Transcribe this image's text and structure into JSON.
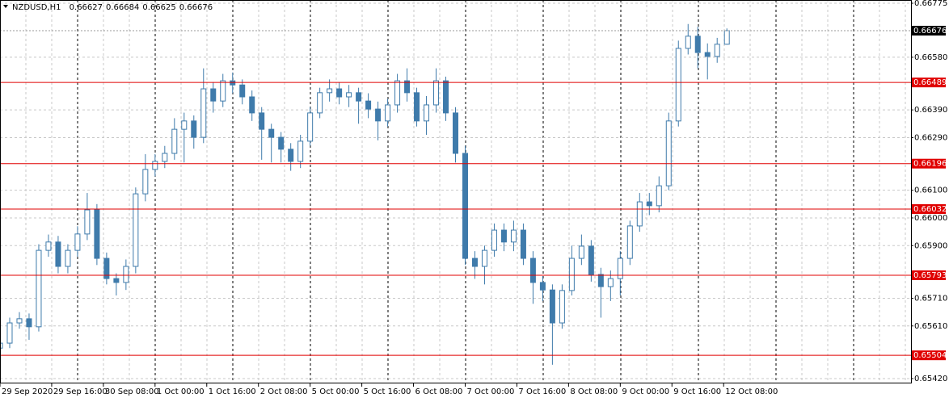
{
  "chart_data": {
    "type": "candlestick",
    "title": "NZDUSD,H1",
    "header_values": [
      0.66627,
      0.66684,
      0.66625,
      0.66676
    ],
    "color": "#3f7bab",
    "level_color": "#e00000",
    "grid": true,
    "ylim": [
      0.6542,
      0.66775
    ],
    "yticks": [
      {
        "value": 0.66775,
        "label": "0.66775"
      },
      {
        "value": 0.6658,
        "label": "0.66580"
      },
      {
        "value": 0.6639,
        "label": "0.66390"
      },
      {
        "value": 0.6629,
        "label": "0.66290"
      },
      {
        "value": 0.661,
        "label": "0.66100"
      },
      {
        "value": 0.66,
        "label": "0.66000"
      },
      {
        "value": 0.659,
        "label": "0.65900"
      },
      {
        "value": 0.6571,
        "label": "0.65710"
      },
      {
        "value": 0.6561,
        "label": "0.65610"
      },
      {
        "value": 0.6542,
        "label": "0.65420"
      }
    ],
    "xlim": [
      0,
      282
    ],
    "xticks": [
      {
        "value": 0,
        "label": "29 Sep 2020"
      },
      {
        "value": 16,
        "label": "29 Sep 16:00"
      },
      {
        "value": 32,
        "label": "30 Sep 08:00"
      },
      {
        "value": 48,
        "label": "1 Oct 00:00"
      },
      {
        "value": 64,
        "label": "1 Oct 16:00"
      },
      {
        "value": 80,
        "label": "2 Oct 08:00"
      },
      {
        "value": 96,
        "label": "5 Oct 00:00"
      },
      {
        "value": 112,
        "label": "5 Oct 16:00"
      },
      {
        "value": 128,
        "label": "6 Oct 08:00"
      },
      {
        "value": 144,
        "label": "7 Oct 00:00"
      },
      {
        "value": 160,
        "label": "7 Oct 16:00"
      },
      {
        "value": 176,
        "label": "8 Oct 08:00"
      },
      {
        "value": 192,
        "label": "9 Oct 00:00"
      },
      {
        "value": 208,
        "label": "9 Oct 16:00"
      },
      {
        "value": 224,
        "label": "12 Oct 08:00"
      }
    ],
    "levels": [
      {
        "value": 0.66489,
        "label": "0.66489"
      },
      {
        "value": 0.66196,
        "label": "0.66196"
      },
      {
        "value": 0.66032,
        "label": "0.66032"
      },
      {
        "value": 0.65793,
        "label": "0.65793"
      },
      {
        "value": 0.65504,
        "label": "0.65504"
      }
    ],
    "current_price": {
      "value": 0.66676,
      "label": "0.66676"
    },
    "x": [
      0,
      3,
      6,
      9,
      12,
      15,
      18,
      21,
      24,
      27,
      30,
      33,
      36,
      39,
      42,
      45,
      48,
      51,
      54,
      57,
      60,
      63,
      66,
      69,
      72,
      75,
      78,
      81,
      84,
      87,
      90,
      93,
      96,
      99,
      102,
      105,
      108,
      111,
      114,
      117,
      120,
      123,
      126,
      129,
      132,
      135,
      138,
      141,
      144,
      147,
      150,
      153,
      156,
      159,
      162,
      165,
      168,
      171,
      174,
      177,
      180,
      183,
      186,
      189,
      192,
      195,
      198,
      201,
      204,
      207,
      210,
      213,
      216,
      219,
      222,
      225
    ],
    "open": [
      0.6553,
      0.65548,
      0.65621,
      0.65636,
      0.65607,
      0.65883,
      0.65913,
      0.65825,
      0.65883,
      0.65942,
      0.66029,
      0.65854,
      0.65781,
      0.65767,
      0.65825,
      0.66087,
      0.66175,
      0.66204,
      0.66233,
      0.6632,
      0.6635,
      0.66291,
      0.66466,
      0.66422,
      0.66495,
      0.6648,
      0.66437,
      0.66379,
      0.6632,
      0.66291,
      0.66248,
      0.66204,
      0.66277,
      0.66379,
      0.66452,
      0.66466,
      0.66437,
      0.66452,
      0.66422,
      0.66393,
      0.6635,
      0.66408,
      0.66495,
      0.66452,
      0.6635,
      0.66408,
      0.66495,
      0.66379,
      0.66233,
      0.65854,
      0.65825,
      0.65883,
      0.65956,
      0.65913,
      0.65956,
      0.65854,
      0.65767,
      0.6574,
      0.65621,
      0.65738,
      0.65854,
      0.65898,
      0.65796,
      0.65752,
      0.65781,
      0.65854,
      0.65971,
      0.66058,
      0.66044,
      0.66116,
      0.6635,
      0.66612,
      0.66656,
      0.66597,
      0.66583,
      0.66627
    ],
    "high": [
      0.65566,
      0.6564,
      0.6566,
      0.65655,
      0.65905,
      0.6594,
      0.65935,
      0.65905,
      0.6597,
      0.6609,
      0.6605,
      0.65875,
      0.658,
      0.6585,
      0.6611,
      0.6623,
      0.6623,
      0.6626,
      0.6636,
      0.6638,
      0.6637,
      0.6654,
      0.6649,
      0.6652,
      0.66525,
      0.665,
      0.6646,
      0.664,
      0.6634,
      0.6631,
      0.6627,
      0.663,
      0.664,
      0.6647,
      0.665,
      0.6649,
      0.6648,
      0.6647,
      0.6645,
      0.6642,
      0.6643,
      0.6652,
      0.6654,
      0.6647,
      0.6644,
      0.6654,
      0.6651,
      0.664,
      0.6626,
      0.6588,
      0.659,
      0.6598,
      0.6598,
      0.6599,
      0.6598,
      0.6588,
      0.6579,
      0.6576,
      0.6576,
      0.659,
      0.6594,
      0.6592,
      0.6582,
      0.6581,
      0.6588,
      0.6599,
      0.6609,
      0.6609,
      0.6615,
      0.6638,
      0.6664,
      0.667,
      0.6669,
      0.6663,
      0.6665,
      0.66684
    ],
    "low": [
      0.6549,
      0.6553,
      0.656,
      0.6556,
      0.6559,
      0.6586,
      0.658,
      0.658,
      0.6586,
      0.6592,
      0.6583,
      0.6576,
      0.6572,
      0.6574,
      0.658,
      0.6606,
      0.6615,
      0.6618,
      0.6621,
      0.662,
      0.6625,
      0.6627,
      0.6638,
      0.664,
      0.6645,
      0.6641,
      0.6635,
      0.6621,
      0.662,
      0.662,
      0.6617,
      0.6618,
      0.6626,
      0.6636,
      0.6642,
      0.6641,
      0.664,
      0.6634,
      0.6636,
      0.6628,
      0.6633,
      0.6638,
      0.6642,
      0.6633,
      0.663,
      0.6638,
      0.6635,
      0.662,
      0.6583,
      0.6578,
      0.6576,
      0.6586,
      0.6588,
      0.6588,
      0.6583,
      0.6569,
      0.657,
      0.6547,
      0.656,
      0.6572,
      0.6583,
      0.6577,
      0.6564,
      0.657,
      0.6572,
      0.6583,
      0.6595,
      0.6601,
      0.6602,
      0.661,
      0.6633,
      0.6659,
      0.6654,
      0.665,
      0.6656,
      0.66625
    ],
    "close": [
      0.65548,
      0.65621,
      0.65636,
      0.65607,
      0.65883,
      0.65913,
      0.65825,
      0.65883,
      0.65942,
      0.66029,
      0.65854,
      0.65781,
      0.65767,
      0.65825,
      0.66087,
      0.66175,
      0.66204,
      0.66233,
      0.6632,
      0.6635,
      0.66291,
      0.66466,
      0.66422,
      0.66495,
      0.6648,
      0.66437,
      0.66379,
      0.6632,
      0.66291,
      0.66248,
      0.66204,
      0.66277,
      0.66379,
      0.66452,
      0.66466,
      0.66437,
      0.66452,
      0.66422,
      0.66393,
      0.6635,
      0.66408,
      0.66495,
      0.66452,
      0.6635,
      0.66408,
      0.66495,
      0.66379,
      0.66233,
      0.65854,
      0.65825,
      0.65883,
      0.65956,
      0.65913,
      0.65956,
      0.65854,
      0.65767,
      0.6574,
      0.65621,
      0.65738,
      0.65854,
      0.65898,
      0.65796,
      0.65752,
      0.65781,
      0.65854,
      0.65971,
      0.66058,
      0.66044,
      0.66116,
      0.6635,
      0.66612,
      0.66656,
      0.66597,
      0.66583,
      0.66627,
      0.66676
    ]
  }
}
